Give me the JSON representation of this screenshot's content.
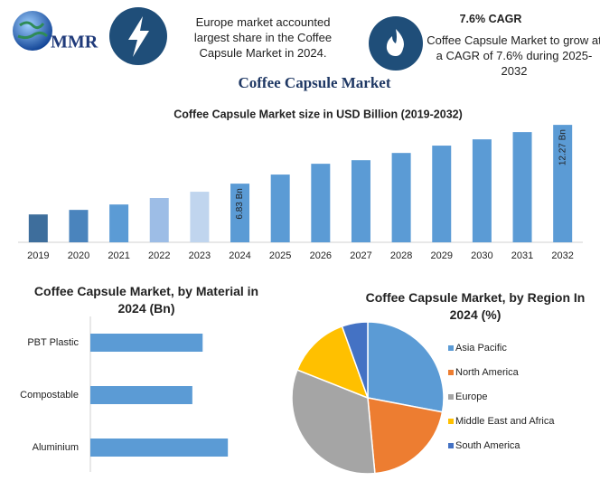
{
  "header": {
    "logo": "MMR",
    "highlight_text": "Europe market accounted largest share in the Coffee Capsule Market in 2024.",
    "cagr_title": "7.6% CAGR",
    "cagr_text": "Coffee Capsule Market to grow at a CAGR of 7.6% during 2025-2032"
  },
  "title": "Coffee Capsule Market",
  "chart_data": [
    {
      "type": "bar",
      "title": "Coffee Capsule Market size in USD Billion (2019-2032)",
      "categories": [
        "2019",
        "2020",
        "2021",
        "2022",
        "2023",
        "2024",
        "2025",
        "2026",
        "2027",
        "2028",
        "2029",
        "2030",
        "2031",
        "2032"
      ],
      "values": [
        3.98,
        4.4,
        4.9,
        5.5,
        6.08,
        6.83,
        7.67,
        8.67,
        9.0,
        9.67,
        10.35,
        10.93,
        11.6,
        12.27
      ],
      "value_labels": [
        null,
        null,
        null,
        null,
        null,
        "6.83 Bn",
        null,
        null,
        null,
        null,
        null,
        null,
        null,
        "12.27 Bn"
      ],
      "colors": [
        "#3e6e9c",
        "#4a84bd",
        "#5b9bd5",
        "#9dbde6",
        "#c0d5ee",
        "#5b9bd5",
        "#5b9bd5",
        "#5b9bd5",
        "#5b9bd5",
        "#5b9bd5",
        "#5b9bd5",
        "#5b9bd5",
        "#5b9bd5",
        "#5b9bd5"
      ],
      "ylim": [
        1.4,
        13.2
      ]
    },
    {
      "type": "barh",
      "title": "Coffee Capsule Market, by Material in 2024 (Bn)",
      "categories": [
        "PBT Plastic",
        "Compostable",
        "Aluminium"
      ],
      "values": [
        2.18,
        1.98,
        2.67
      ],
      "color": "#5b9bd5",
      "xlim": [
        0,
        3
      ]
    },
    {
      "type": "pie",
      "title": "Coffee Capsule Market, by Region In 2024 (%)",
      "legend": "right",
      "series": [
        {
          "name": "Asia Pacific",
          "color": "#5b9bd5",
          "values": [
            28
          ]
        },
        {
          "name": "North America",
          "color": "#ed7d31",
          "values": [
            20.5
          ]
        },
        {
          "name": "Europe",
          "color": "#a5a5a5",
          "values": [
            32.5
          ]
        },
        {
          "name": "Middle East and Africa",
          "color": "#ffc000",
          "values": [
            13.5
          ]
        },
        {
          "name": "South America",
          "color": "#4472c4",
          "values": [
            5.5
          ]
        }
      ]
    }
  ]
}
